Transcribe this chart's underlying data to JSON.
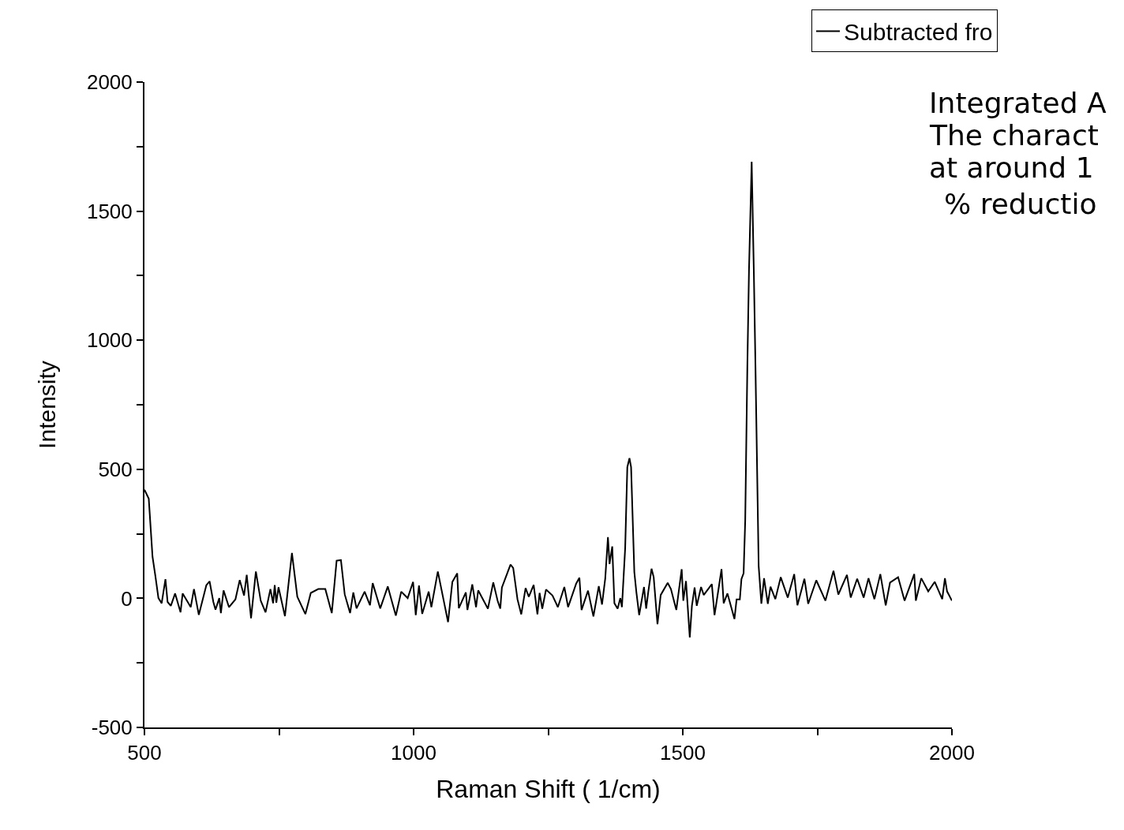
{
  "chart_data": {
    "type": "line",
    "xlabel": "Raman Shift ( 1/cm)",
    "ylabel": "Intensity",
    "xlim": [
      500,
      2000
    ],
    "xticks": [
      500,
      {
        "value": 750,
        "label": null
      },
      1000,
      {
        "value": 1250,
        "label": null
      },
      1500,
      {
        "value": 1750,
        "label": null
      },
      2000
    ],
    "ylim": [
      -500,
      2000
    ],
    "yticks": [
      -500,
      {
        "value": -250,
        "label": null
      },
      0,
      {
        "value": 250,
        "label": null
      },
      500,
      {
        "value": 750,
        "label": null
      },
      1000,
      {
        "value": 1250,
        "label": null
      },
      1500,
      {
        "value": 1750,
        "label": null
      },
      2000
    ],
    "grid": false,
    "legend": "top right",
    "marker": "none",
    "line_style": "solid",
    "annotations": [
      "Integrated A",
      "The charact",
      "at around 1",
      "% reductio"
    ],
    "x": [
      500,
      508,
      515,
      520,
      526,
      532,
      539,
      543,
      549,
      557,
      567,
      571,
      586,
      592,
      601,
      615,
      621,
      628,
      632,
      639,
      642,
      647,
      657,
      669,
      677,
      685,
      690,
      698,
      707,
      716,
      725,
      734,
      739,
      742,
      745,
      749,
      761,
      774,
      784,
      799,
      809,
      823,
      836,
      848,
      857,
      865,
      872,
      882,
      888,
      894,
      909,
      919,
      924,
      938,
      952,
      967,
      977,
      989,
      999,
      1004,
      1010,
      1016,
      1028,
      1033,
      1045,
      1064,
      1072,
      1081,
      1084,
      1097,
      1100,
      1109,
      1116,
      1120,
      1138,
      1148,
      1156,
      1161,
      1164,
      1180,
      1185,
      1193,
      1200,
      1208,
      1214,
      1223,
      1230,
      1234,
      1239,
      1246,
      1258,
      1268,
      1280,
      1287,
      1302,
      1308,
      1312,
      1324,
      1334,
      1344,
      1350,
      1356,
      1361,
      1364,
      1369,
      1373,
      1379,
      1384,
      1387,
      1393,
      1397,
      1401,
      1404,
      1410,
      1414,
      1419,
      1428,
      1432,
      1436,
      1442,
      1446,
      1453,
      1459,
      1472,
      1478,
      1488,
      1498,
      1501,
      1506,
      1513,
      1517,
      1522,
      1526,
      1534,
      1539,
      1554,
      1559,
      1567,
      1572,
      1576,
      1583,
      1596,
      1600,
      1606,
      1609,
      1613,
      1616,
      1620,
      1623,
      1628,
      1632,
      1635,
      1641,
      1646,
      1651,
      1658,
      1663,
      1672,
      1682,
      1695,
      1707,
      1713,
      1726,
      1733,
      1748,
      1765,
      1780,
      1789,
      1805,
      1812,
      1824,
      1836,
      1845,
      1856,
      1867,
      1877,
      1885,
      1900,
      1912,
      1930,
      1933,
      1943,
      1956,
      1968,
      1982,
      1987,
      1991,
      2000
    ],
    "series": [
      {
        "name": "Subtracted fro",
        "color": "#000000",
        "values": [
          421,
          386,
          161,
          91,
          1,
          -19,
          74,
          -14,
          -29,
          19,
          -54,
          19,
          -34,
          36,
          -64,
          51,
          66,
          -14,
          -44,
          1,
          -57,
          31,
          -34,
          -4,
          71,
          11,
          91,
          -77,
          104,
          -9,
          -54,
          36,
          -19,
          51,
          -17,
          43,
          -69,
          176,
          6,
          -61,
          21,
          36,
          36,
          -57,
          146,
          148,
          16,
          -57,
          23,
          -39,
          26,
          -27,
          59,
          -39,
          46,
          -67,
          26,
          1,
          64,
          -65,
          50,
          -60,
          26,
          -34,
          104,
          -92,
          64,
          97,
          -38,
          23,
          -45,
          54,
          -34,
          31,
          -40,
          62,
          -9,
          -40,
          42,
          131,
          118,
          -4,
          -62,
          40,
          6,
          52,
          -62,
          21,
          -40,
          34,
          11,
          -34,
          44,
          -34,
          57,
          80,
          -45,
          30,
          -70,
          47,
          -24,
          77,
          237,
          133,
          201,
          -19,
          -40,
          1,
          -34,
          194,
          508,
          543,
          508,
          102,
          21,
          -65,
          44,
          -40,
          26,
          115,
          82,
          -100,
          13,
          60,
          36,
          -45,
          113,
          -9,
          67,
          -151,
          -29,
          42,
          -29,
          44,
          13,
          55,
          -65,
          44,
          113,
          -19,
          19,
          -80,
          -4,
          -4,
          75,
          97,
          300,
          903,
          1268,
          1691,
          1268,
          903,
          125,
          -21,
          78,
          -21,
          45,
          -3,
          82,
          3,
          94,
          -27,
          76,
          -21,
          70,
          -9,
          107,
          15,
          91,
          3,
          76,
          3,
          78,
          -3,
          94,
          -27,
          61,
          82,
          -9,
          94,
          -9,
          78,
          27,
          64,
          -3,
          78,
          27,
          -9
        ]
      }
    ]
  }
}
